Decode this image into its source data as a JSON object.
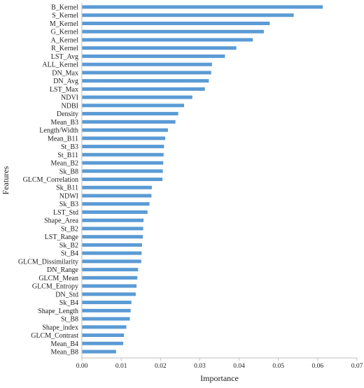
{
  "chart_data": {
    "type": "bar",
    "orientation": "horizontal",
    "title": "",
    "xlabel": "Importance",
    "ylabel": "Features",
    "xlim": [
      0,
      0.07
    ],
    "xticks": [
      "0.00",
      "0.01",
      "0.02",
      "0.03",
      "0.04",
      "0.05",
      "0.06",
      "0.07"
    ],
    "grid": false,
    "legend": "none",
    "bar_color": "#5b9bd5",
    "categories": [
      "B_Kernel",
      "S_Kernel",
      "M_Kernel",
      "G_Kernel",
      "A_Kernel",
      "R_Kernel",
      "LST_Avg",
      "ALL_Kernel",
      "DN_Max",
      "DN_Avg",
      "LST_Max",
      "NDVI",
      "NDBI",
      "Density",
      "Mean_B3",
      "Length/Width",
      "Mean_B11",
      "St_B3",
      "St_B11",
      "Mean_B2",
      "Sk_B8",
      "GLCM_Correlation",
      "Sk_B11",
      "NDWI",
      "Sk_B3",
      "LST_Std",
      "Shape_Area",
      "St_B2",
      "LST_Range",
      "Sk_B2",
      "St_B4",
      "GLCM_Dissimilarity",
      "DN_Range",
      "GLCM_Mean",
      "GLCM_Entropy",
      "DN_Std",
      "Sk_B4",
      "Shape_Length",
      "St_B8",
      "Shape_index",
      "GLCM_Contrast",
      "Mean_B4",
      "Mean_B8"
    ],
    "values": [
      0.0613,
      0.0539,
      0.0478,
      0.0463,
      0.0435,
      0.0393,
      0.0364,
      0.0331,
      0.0329,
      0.0323,
      0.0313,
      0.0281,
      0.026,
      0.0245,
      0.0238,
      0.0219,
      0.0212,
      0.0209,
      0.0208,
      0.0207,
      0.0206,
      0.0205,
      0.0178,
      0.0177,
      0.0172,
      0.0167,
      0.0157,
      0.0156,
      0.0155,
      0.0153,
      0.0152,
      0.0151,
      0.0143,
      0.0141,
      0.0139,
      0.0137,
      0.0126,
      0.0124,
      0.0122,
      0.0113,
      0.0107,
      0.0105,
      0.0087
    ]
  }
}
